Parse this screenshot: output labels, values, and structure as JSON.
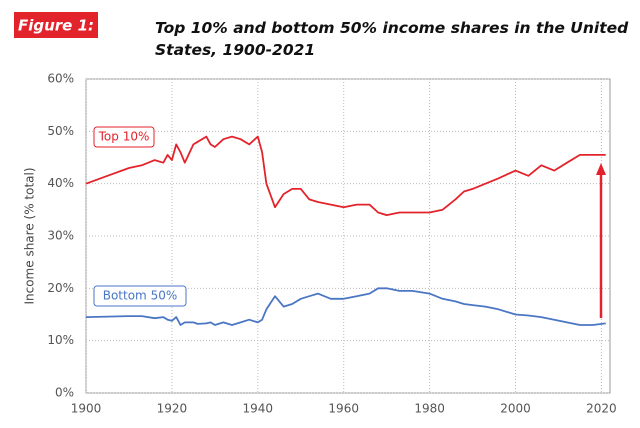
{
  "chart_data": {
    "type": "line",
    "figure_label": "Figure 1:",
    "title": "Top 10% and bottom 50% income shares in the United States, 1900-2021",
    "y_label": "Income share (% total)",
    "x": [
      1900,
      1905,
      1910,
      1913,
      1916,
      1918,
      1919,
      1920,
      1921,
      1922,
      1923,
      1925,
      1926,
      1928,
      1929,
      1930,
      1932,
      1934,
      1936,
      1938,
      1940,
      1941,
      1942,
      1944,
      1946,
      1948,
      1950,
      1952,
      1954,
      1957,
      1960,
      1963,
      1966,
      1968,
      1970,
      1973,
      1976,
      1980,
      1983,
      1986,
      1988,
      1990,
      1993,
      1996,
      2000,
      2003,
      2006,
      2009,
      2012,
      2015,
      2018,
      2021
    ],
    "series": [
      {
        "name": "Top 10%",
        "color": "#e3232b",
        "values": [
          40,
          41.5,
          43,
          43.5,
          44.5,
          44,
          45.5,
          44.5,
          47.5,
          46,
          44,
          47.5,
          48,
          49,
          47.5,
          47,
          48.5,
          49,
          48.5,
          47.5,
          49,
          46,
          40,
          35.5,
          38,
          39,
          39,
          37,
          36.5,
          36,
          35.5,
          36,
          36,
          34.5,
          34,
          34.5,
          34.5,
          34.5,
          35,
          37,
          38.5,
          39,
          40,
          41,
          42.5,
          41.5,
          43.5,
          42.5,
          44,
          45.5,
          45.5,
          45.5
        ]
      },
      {
        "name": "Bottom 50%",
        "color": "#4a76c4",
        "values": [
          14.5,
          14.6,
          14.7,
          14.7,
          14.3,
          14.5,
          14,
          13.8,
          14.5,
          13,
          13.5,
          13.5,
          13.2,
          13.3,
          13.5,
          13,
          13.5,
          13,
          13.5,
          14,
          13.5,
          14,
          16,
          18.5,
          16.5,
          17,
          18,
          18.5,
          19,
          18,
          18,
          18.5,
          19,
          20,
          20,
          19.5,
          19.5,
          19,
          18,
          17.5,
          17,
          16.8,
          16.5,
          16,
          15,
          14.8,
          14.5,
          14,
          13.5,
          13,
          13,
          13.3
        ]
      }
    ],
    "xlim": [
      1900,
      2022
    ],
    "xticks": [
      1900,
      1920,
      1940,
      1960,
      1980,
      2000,
      2020
    ],
    "ylim": [
      0,
      60
    ],
    "yticks": [
      {
        "value": 0,
        "label": "0%"
      },
      {
        "value": 10,
        "label": "10%"
      },
      {
        "value": 20,
        "label": "20%"
      },
      {
        "value": 30,
        "label": "30%"
      },
      {
        "value": 40,
        "label": "40%"
      },
      {
        "value": 50,
        "label": "50%"
      },
      {
        "value": 60,
        "label": "60%"
      }
    ],
    "grid": true
  }
}
